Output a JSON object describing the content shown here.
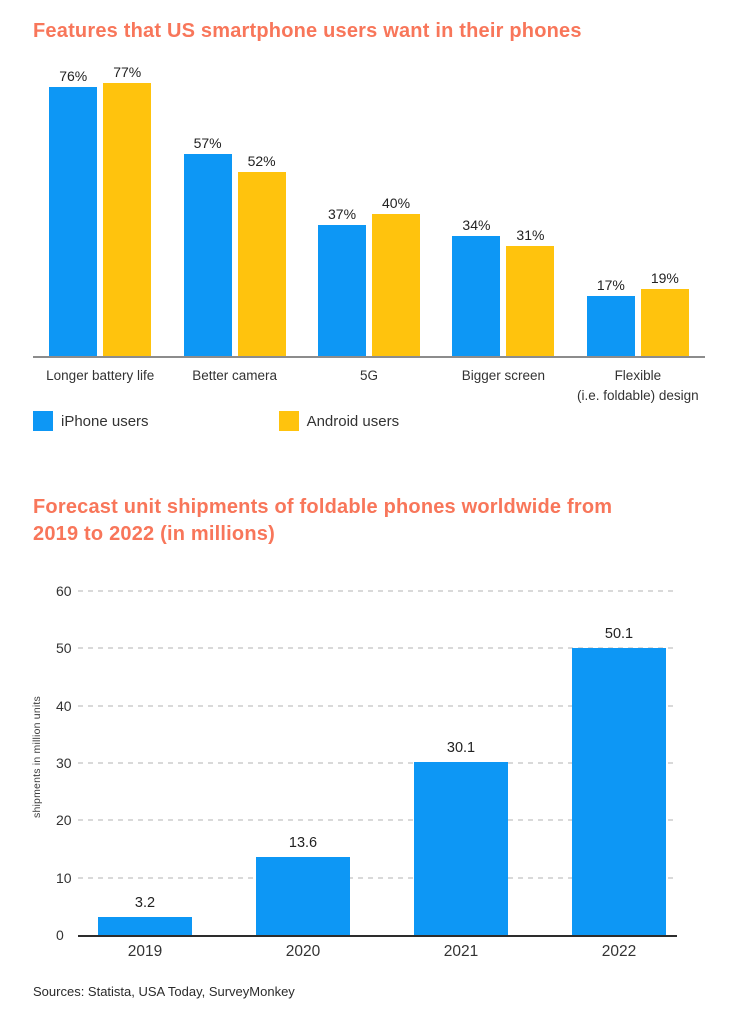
{
  "colors": {
    "accent_orange": "#F8765A",
    "iphone_blue": "#0D97F5",
    "android_yellow": "#FFC30D",
    "axis_gray": "#8C8C8C",
    "axis_dark": "#2D2D2D",
    "gridline_gray": "#D9D9D9",
    "text_dark": "#2B2B2B"
  },
  "chart_data": [
    {
      "type": "bar",
      "title": "Features that US smartphone users want in their phones",
      "categories": [
        "Longer battery life",
        "Better camera",
        "5G",
        "Bigger screen",
        "Flexible\n(i.e. foldable) design"
      ],
      "series": [
        {
          "name": "iPhone users",
          "color_key": "iphone_blue",
          "values": [
            76,
            57,
            37,
            34,
            17
          ]
        },
        {
          "name": "Android users",
          "color_key": "android_yellow",
          "values": [
            77,
            52,
            40,
            31,
            19
          ]
        }
      ],
      "value_suffix": "%",
      "ylim": [
        0,
        100
      ],
      "grid": false,
      "legend_position": "bottom-left"
    },
    {
      "type": "bar",
      "title": "Forecast unit shipments of foldable phones worldwide from\n2019 to 2022 (in millions)",
      "categories": [
        "2019",
        "2020",
        "2021",
        "2022"
      ],
      "values": [
        3.2,
        13.6,
        30.1,
        50.1
      ],
      "value_labels": [
        "3.2",
        "13.6",
        "30.1",
        "50.1"
      ],
      "xlabel": "",
      "ylabel": "shipments in million units",
      "yticks": [
        0,
        10,
        20,
        30,
        40,
        50,
        60
      ],
      "ylim": [
        0,
        60
      ],
      "grid": true,
      "grid_style": "dashed",
      "legend_position": "none"
    }
  ],
  "footer": {
    "sources": "Sources: Statista, USA Today, SurveyMonkey"
  }
}
